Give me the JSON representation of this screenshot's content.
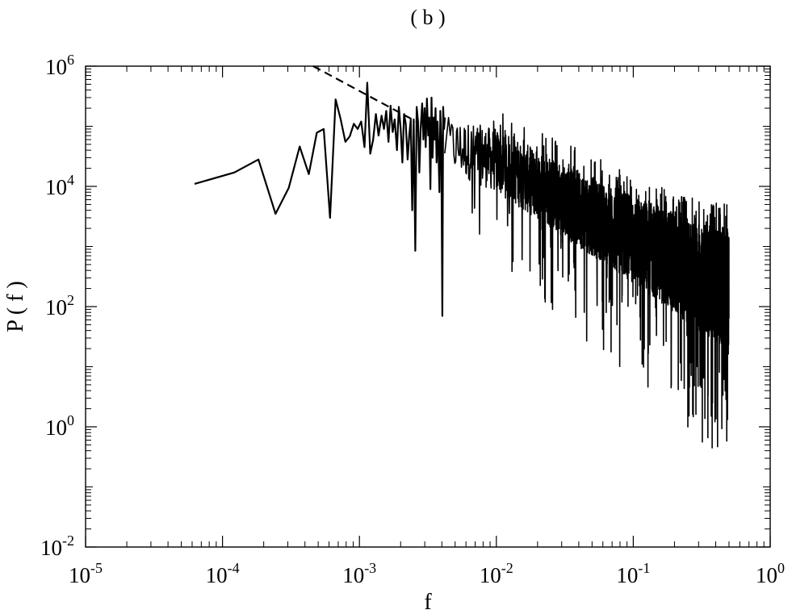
{
  "chart_data": {
    "type": "line",
    "title": "( b )",
    "xlabel": "f",
    "ylabel": "P ( f )",
    "x_scale": "log",
    "y_scale": "log",
    "xlim": [
      1e-05,
      1
    ],
    "ylim": [
      0.01,
      1000000
    ],
    "x_ticks": [
      {
        "value": 1e-05,
        "base": "10",
        "exp": "-5"
      },
      {
        "value": 0.0001,
        "base": "10",
        "exp": "-4"
      },
      {
        "value": 0.001,
        "base": "10",
        "exp": "-3"
      },
      {
        "value": 0.01,
        "base": "10",
        "exp": "-2"
      },
      {
        "value": 0.1,
        "base": "10",
        "exp": "-1"
      },
      {
        "value": 1,
        "base": "10",
        "exp": "0"
      }
    ],
    "y_ticks": [
      {
        "value": 0.01,
        "base": "10",
        "exp": "-2"
      },
      {
        "value": 1,
        "base": "10",
        "exp": "0"
      },
      {
        "value": 100,
        "base": "10",
        "exp": "2"
      },
      {
        "value": 10000,
        "base": "10",
        "exp": "4"
      },
      {
        "value": 1000000,
        "base": "10",
        "exp": "6"
      }
    ],
    "grid": false,
    "legend": "none",
    "series": [
      {
        "style": "solid",
        "color": "#000000",
        "x": [
          6.25e-05,
          0.000122,
          0.000183,
          0.000244,
          0.000305,
          0.000366,
          0.000427,
          0.000488,
          0.000549,
          0.00061,
          0.00067,
          0.00073,
          0.00079,
          0.00085,
          0.00091,
          0.00097,
          0.00103,
          0.00109,
          0.00114,
          0.0012,
          0.00126,
          0.00132,
          0.00138,
          0.00145,
          0.00151,
          0.00157,
          0.00163,
          0.00169,
          0.00175,
          0.00181,
          0.00188,
          0.00194,
          0.002,
          0.00206,
          0.00212,
          0.00218,
          0.00225,
          0.00231,
          0.00237,
          0.00243,
          0.00249,
          0.00256,
          0.00262,
          0.00268,
          0.00274,
          0.0028,
          0.00287,
          0.00293,
          0.00299,
          0.00305,
          0.00311,
          0.00318,
          0.00324,
          0.0033,
          0.00336,
          0.00342,
          0.00348,
          0.00354,
          0.0036,
          0.00366,
          0.00372,
          0.00378,
          0.00384,
          0.0039,
          0.00396,
          0.00403,
          0.00409,
          0.00415,
          0.00421
        ],
        "y": [
          11000,
          17000,
          28000,
          3500,
          9500,
          46000,
          16000,
          78000,
          90000,
          3000,
          280000,
          130000,
          55000,
          68000,
          110000,
          90000,
          120000,
          45000,
          530000,
          35000,
          60000,
          160000,
          70000,
          150000,
          90000,
          180000,
          55000,
          220000,
          80000,
          130000,
          40000,
          210000,
          90000,
          25000,
          160000,
          110000,
          28000,
          70000,
          130000,
          4000,
          130000,
          850,
          210000,
          120000,
          17000,
          90000,
          240000,
          60000,
          200000,
          45000,
          290000,
          70000,
          140000,
          9000,
          300000,
          30000,
          140000,
          60000,
          200000,
          25000,
          120000,
          40000,
          8000,
          180000,
          60000,
          70,
          210000,
          90000,
          140000
        ]
      },
      {
        "style": "dashed",
        "color": "#000000",
        "x": [
          0.00046,
          0.0026
        ],
        "y": [
          1000000,
          120000
        ]
      }
    ],
    "dense_noise": {
      "description": "",
      "x_range": [
        0.0042,
        0.5
      ],
      "upper_envelope": [
        [
          0.004,
          300000
        ],
        [
          0.01,
          180000
        ],
        [
          0.03,
          60000
        ],
        [
          0.1,
          15000
        ],
        [
          0.3,
          6000
        ],
        [
          0.5,
          5000
        ]
      ],
      "lower_envelope": [
        [
          0.004,
          2000
        ],
        [
          0.01,
          400
        ],
        [
          0.03,
          60
        ],
        [
          0.1,
          5
        ],
        [
          0.3,
          0.6
        ],
        [
          0.5,
          0.3
        ]
      ],
      "upper_band": [
        [
          0.004,
          150000
        ],
        [
          0.01,
          90000
        ],
        [
          0.03,
          25000
        ],
        [
          0.1,
          7000
        ],
        [
          0.3,
          2500
        ],
        [
          0.5,
          2000
        ]
      ],
      "lower_band": [
        [
          0.004,
          20000
        ],
        [
          0.01,
          8000
        ],
        [
          0.03,
          1500
        ],
        [
          0.1,
          250
        ],
        [
          0.3,
          40
        ],
        [
          0.5,
          20
        ]
      ]
    }
  }
}
